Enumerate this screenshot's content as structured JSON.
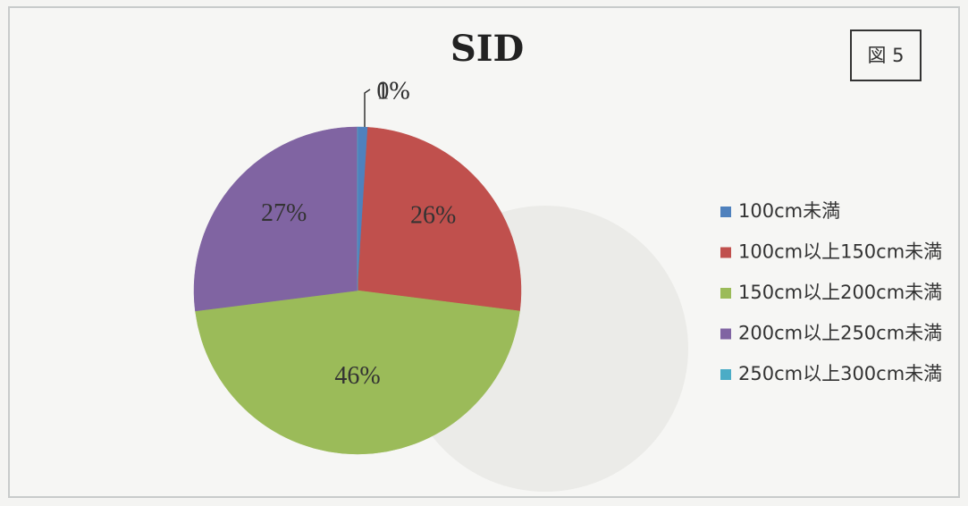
{
  "chart_data": {
    "type": "pie",
    "title": "SID",
    "figure_label": "図 5",
    "categories": [
      "100cm未満",
      "100cm以上150cm未満",
      "150cm以上200cm未満",
      "200cm以上250cm未満",
      "250cm以上300cm未満"
    ],
    "values": [
      1,
      26,
      46,
      27,
      0
    ],
    "value_labels": [
      "1%",
      "26%",
      "46%",
      "27%",
      "0%"
    ],
    "colors": [
      "#4f81bd",
      "#c0504d",
      "#9bbb59",
      "#8064a2",
      "#4bacc6"
    ],
    "legend": "right"
  }
}
